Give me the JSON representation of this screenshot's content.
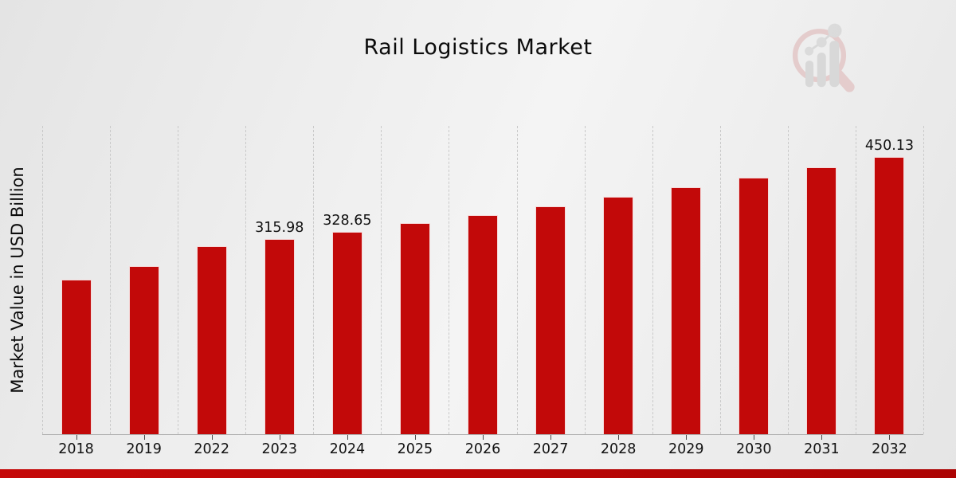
{
  "chart_data": {
    "type": "bar",
    "title": "Rail Logistics Market",
    "ylabel": "Market Value in USD Billion",
    "xlabel": "",
    "categories": [
      "2018",
      "2019",
      "2022",
      "2023",
      "2024",
      "2025",
      "2026",
      "2027",
      "2028",
      "2029",
      "2030",
      "2031",
      "2032"
    ],
    "values": [
      250.4,
      272.0,
      304.3,
      315.98,
      328.65,
      341.8,
      355.5,
      369.8,
      384.6,
      400.1,
      416.1,
      432.8,
      450.13
    ],
    "data_labels": [
      "",
      "",
      "",
      "315.98",
      "328.65",
      "",
      "",
      "",
      "",
      "",
      "",
      "",
      "450.13"
    ],
    "ylim": [
      0,
      500
    ],
    "grid": "vertical-dashed",
    "legend": "none",
    "bar_color": "#c20909"
  },
  "watermark": {
    "icon": "magnifier-bar-chart-logo"
  },
  "colors": {
    "accent_red": "#c20909",
    "footer_band": "#c50808",
    "grid_line": "#c9c9c9",
    "axis_line": "#b0b0b0",
    "text": "#111111",
    "logo_pink": "#d89f9f",
    "logo_gray": "#bcbcbc"
  }
}
